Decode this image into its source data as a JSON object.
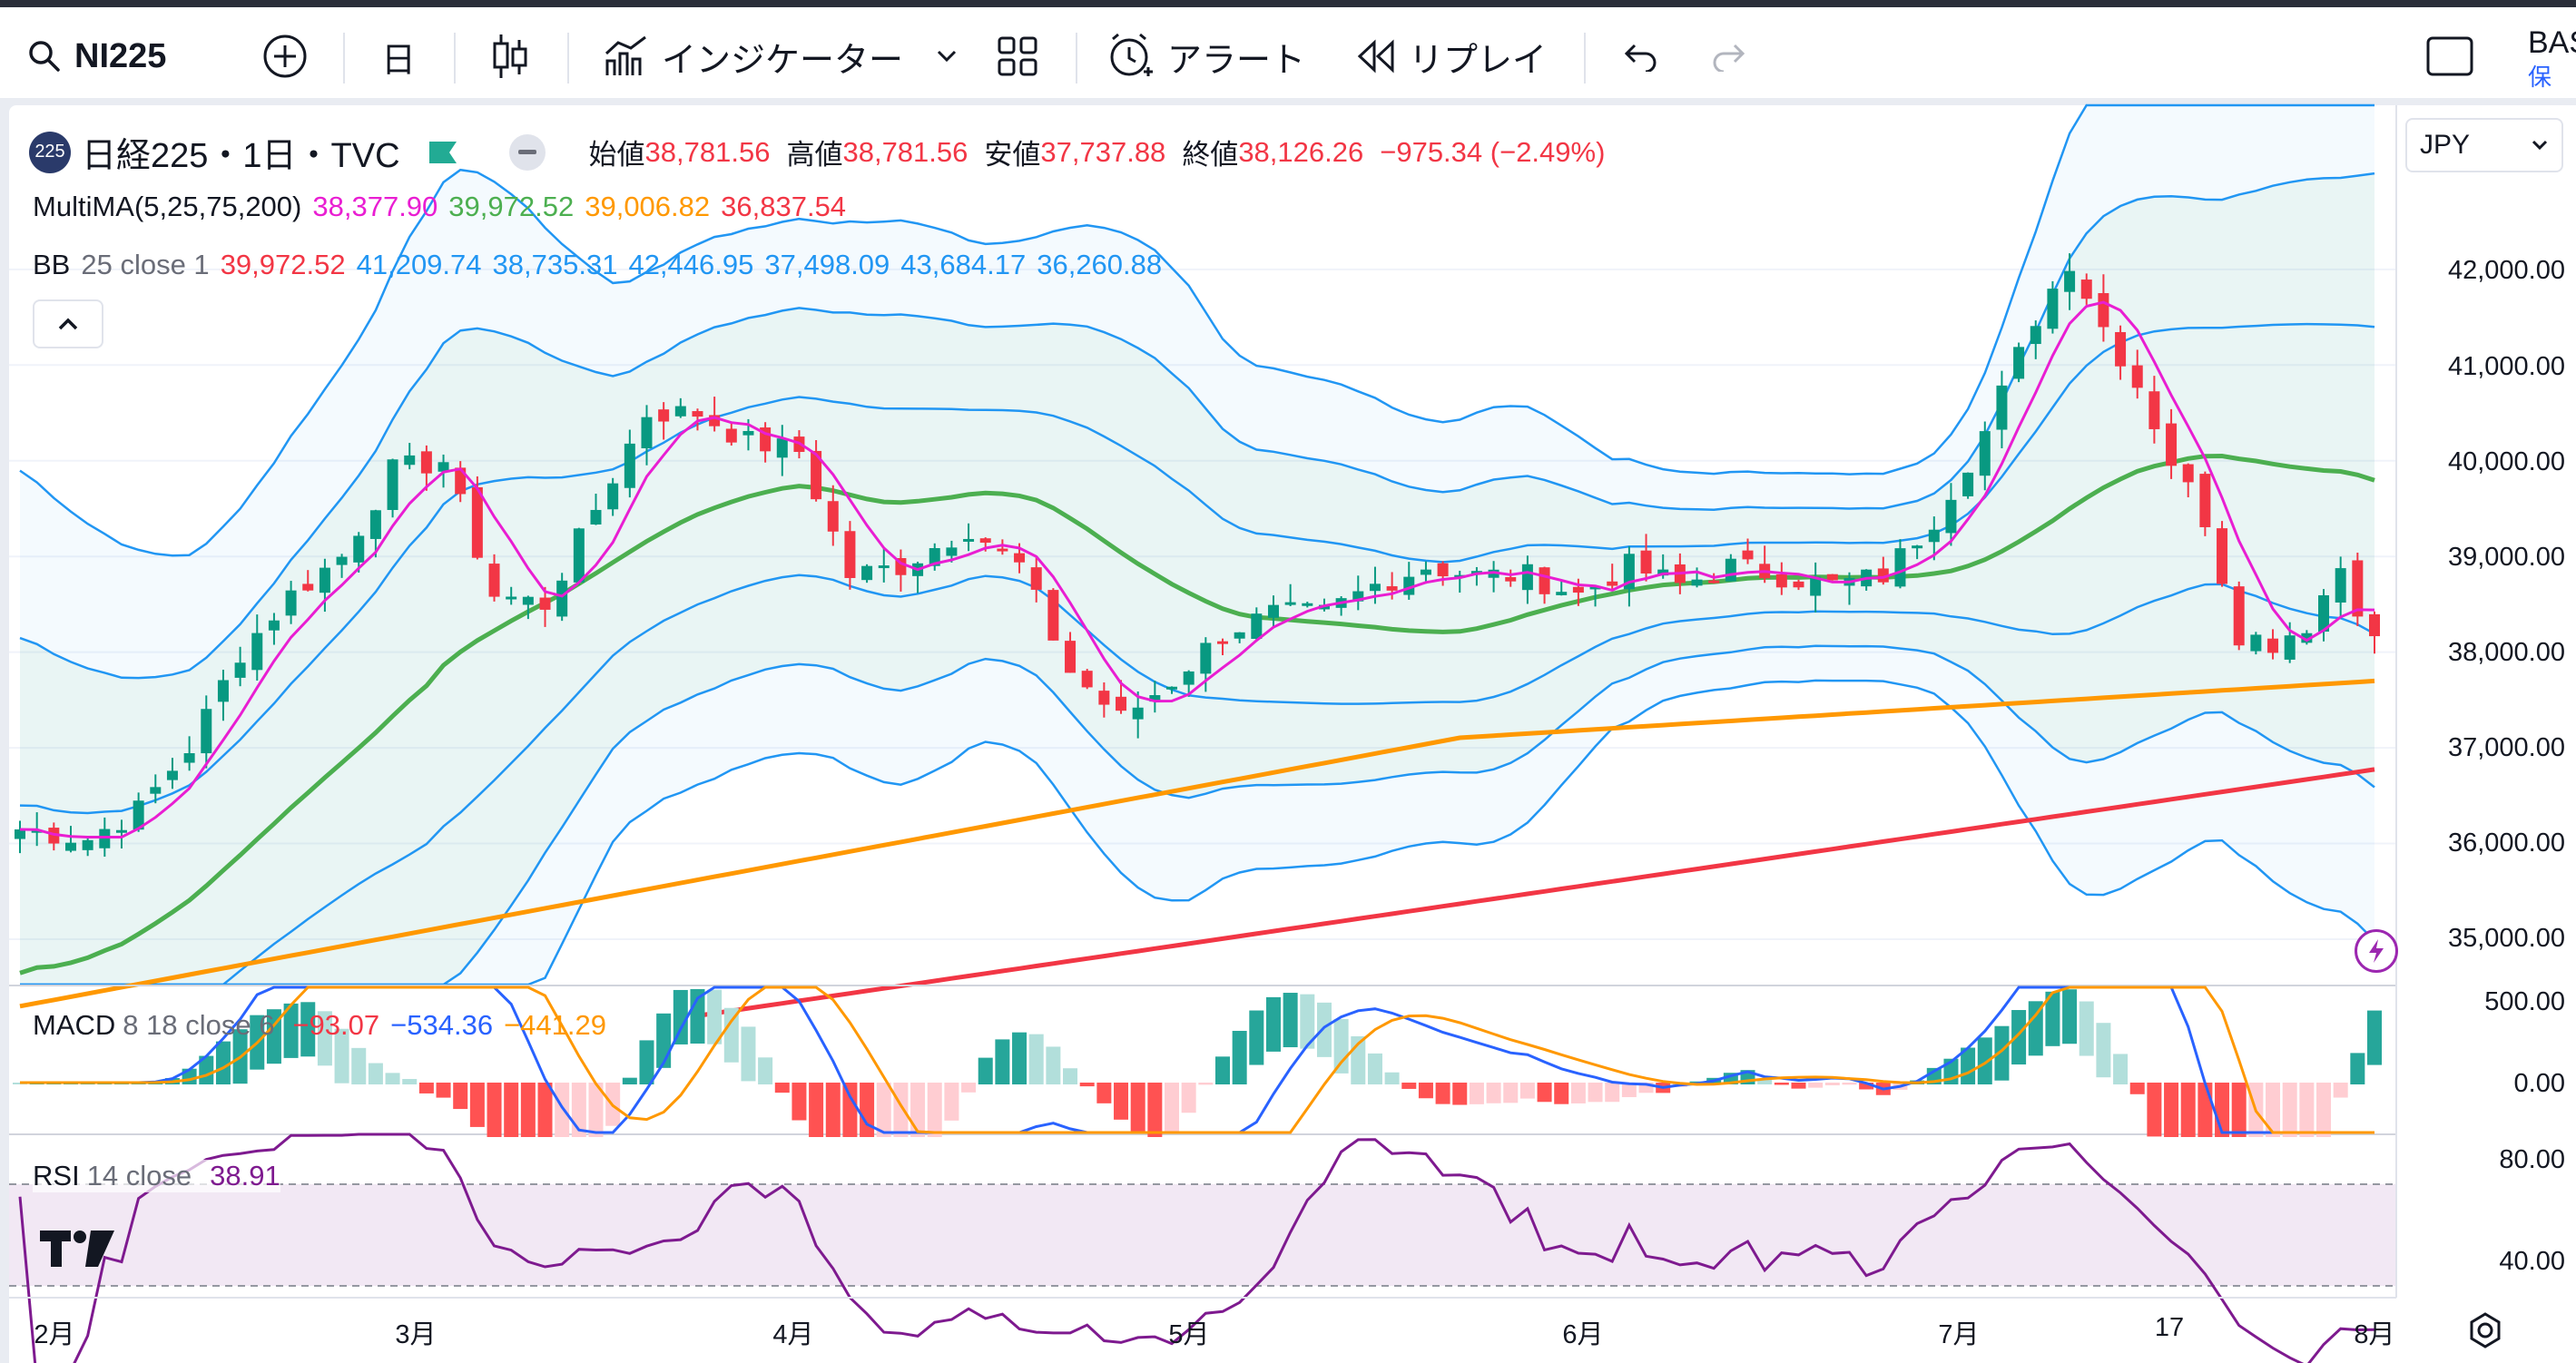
{
  "toolbar": {
    "symbol": "NI225",
    "interval": "日",
    "indicators_label": "インジケーター",
    "alert_label": "アラート",
    "replay_label": "リプレイ",
    "right_partial_label": "BAS",
    "right_partial_sub": "保"
  },
  "symbol_header": {
    "badge": "225",
    "title": "日経225・1日・TVC",
    "open_label": "始値",
    "open": "38,781.56",
    "high_label": "高値",
    "high": "38,781.56",
    "low_label": "安値",
    "low": "37,737.88",
    "close_label": "終値",
    "close": "38,126.26",
    "change": "−975.34 (−2.49%)",
    "currency": "JPY"
  },
  "indicators": {
    "ma": {
      "label": "MultiMA(5,25,75,200)",
      "v1": "38,377.90",
      "v2": "39,972.52",
      "v3": "39,006.82",
      "v4": "36,837.54"
    },
    "bb": {
      "name": "BB",
      "params": "25 close 1",
      "values": [
        "39,972.52",
        "41,209.74",
        "38,735.31",
        "42,446.95",
        "37,498.09",
        "43,684.17",
        "36,260.88"
      ]
    },
    "macd": {
      "name": "MACD",
      "params": "8 18 close 6",
      "v1": "−93.07",
      "v2": "−534.36",
      "v3": "−441.29"
    },
    "rsi": {
      "name": "RSI",
      "params": "14 close",
      "value": "38.91"
    }
  },
  "price_axis": [
    "42,000.00",
    "41,000.00",
    "40,000.00",
    "39,000.00",
    "38,000.00",
    "37,000.00",
    "36,000.00",
    "35,000.00"
  ],
  "macd_axis": [
    "500.00",
    "0.00"
  ],
  "rsi_axis": [
    "80.00",
    "40.00"
  ],
  "time_axis": [
    "2月",
    "3月",
    "4月",
    "5月",
    "6月",
    "7月",
    "17",
    "8月"
  ],
  "colors": {
    "up": "#089981",
    "down": "#f23645",
    "ma5": "#e91ed2",
    "ma25": "#4caf50",
    "ma75": "#ff9800",
    "ma200": "#f23645",
    "bb": "#2196f3",
    "rsi": "#7e1a8f",
    "macd": "#2962ff",
    "signal": "#ff9800"
  },
  "chart_data": {
    "type": "candlestick",
    "series_name": "日経225",
    "ohlc_sample_last": {
      "open": 38781.56,
      "high": 38781.56,
      "low": 37737.88,
      "close": 38126.26
    },
    "y_range": [
      34700,
      43500
    ],
    "x_range": [
      "2月",
      "8月"
    ],
    "moving_averages": {
      "5": 38377.9,
      "25": 39972.52,
      "75": 39006.82,
      "200": 36837.54
    },
    "macd": {
      "histogram": -93.07,
      "macd": -534.36,
      "signal": -441.29
    },
    "rsi": 38.91
  }
}
